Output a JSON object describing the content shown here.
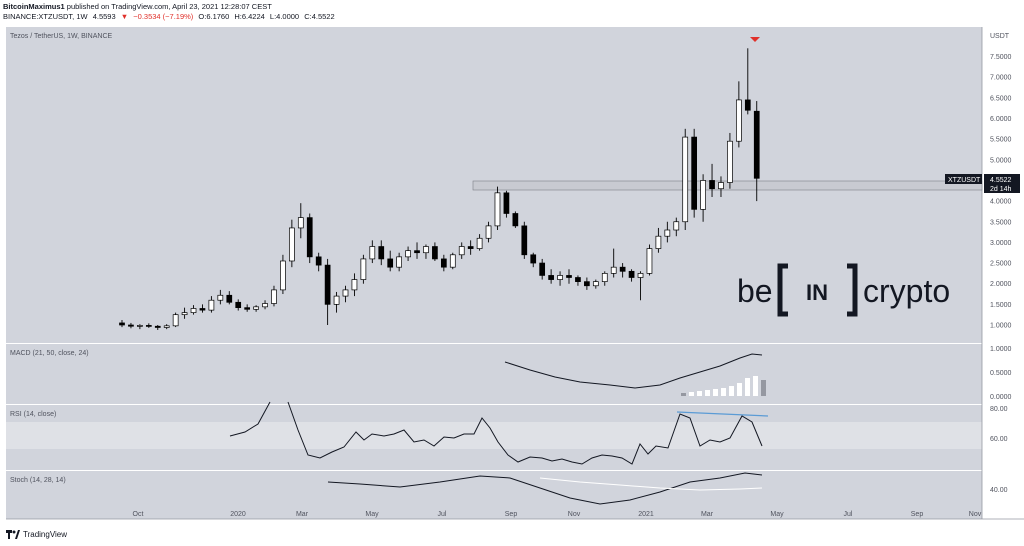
{
  "header": {
    "publisher": "BitcoinMaximus1",
    "published_text": "published on TradingView.com, April 23, 2021 12:28:07 CEST",
    "symbol": "BINANCE:XTZUSDT, 1W",
    "last": "4.5593",
    "change": "−0.3534 (−7.19%)",
    "open": "O:6.1760",
    "high": "H:6.4224",
    "low": "L:4.0000",
    "close": "C:4.5522"
  },
  "pane_title": "Tezos / TetherUS, 1W, BINANCE",
  "price_axis": {
    "unit": "USDT",
    "ticks": [
      "7.5000",
      "7.0000",
      "6.5000",
      "6.0000",
      "5.5000",
      "5.0000",
      "4.0000",
      "3.5000",
      "3.0000",
      "2.5000",
      "2.0000",
      "1.5000",
      "1.0000"
    ]
  },
  "price_tag": {
    "symbol": "XTZUSDT",
    "value": "4.5522",
    "countdown": "2d 14h"
  },
  "macd": {
    "title": "MACD (21, 50, close, 24)",
    "ticks": [
      "1.0000",
      "0.5000",
      "0.0000"
    ]
  },
  "rsi": {
    "title": "RSI (14, close)",
    "ticks": [
      "80.00",
      "60.00"
    ]
  },
  "stoch": {
    "title": "Stoch (14, 28, 14)",
    "ticks": [
      "40.00"
    ]
  },
  "time_axis": [
    "Oct",
    "2020",
    "Mar",
    "May",
    "Jul",
    "Sep",
    "Nov",
    "2021",
    "Mar",
    "May",
    "Jul",
    "Sep",
    "Nov"
  ],
  "watermark": {
    "left": "be",
    "middle": "IN",
    "right": "crypto"
  },
  "footer": "TradingView",
  "colors": {
    "pane_bg": "#d1d4dc",
    "up": "#ffffff",
    "down": "#000000",
    "signal": "#ffffff",
    "divergence": "#5b9bd5",
    "arrow": "#e0302a"
  },
  "chart_data": {
    "type": "candlestick",
    "title": "Tezos / TetherUS, 1W, BINANCE",
    "interval": "1W",
    "ylim": [
      0.8,
      7.9
    ],
    "resistance_zone": [
      4.3,
      4.55
    ],
    "candles": [
      [
        1.05,
        1.12,
        0.95,
        1.0
      ],
      [
        1.0,
        1.05,
        0.92,
        0.97
      ],
      [
        0.97,
        1.02,
        0.9,
        0.99
      ],
      [
        0.99,
        1.04,
        0.93,
        0.97
      ],
      [
        0.97,
        1.0,
        0.88,
        0.94
      ],
      [
        0.94,
        1.02,
        0.9,
        0.98
      ],
      [
        0.98,
        1.3,
        0.95,
        1.25
      ],
      [
        1.25,
        1.42,
        1.15,
        1.3
      ],
      [
        1.3,
        1.48,
        1.25,
        1.4
      ],
      [
        1.4,
        1.5,
        1.3,
        1.36
      ],
      [
        1.36,
        1.7,
        1.3,
        1.6
      ],
      [
        1.6,
        1.85,
        1.5,
        1.72
      ],
      [
        1.72,
        1.82,
        1.5,
        1.55
      ],
      [
        1.55,
        1.62,
        1.35,
        1.42
      ],
      [
        1.42,
        1.5,
        1.32,
        1.38
      ],
      [
        1.38,
        1.48,
        1.32,
        1.44
      ],
      [
        1.44,
        1.6,
        1.38,
        1.52
      ],
      [
        1.52,
        1.95,
        1.45,
        1.85
      ],
      [
        1.85,
        2.7,
        1.75,
        2.55
      ],
      [
        2.55,
        3.55,
        2.4,
        3.35
      ],
      [
        3.35,
        3.95,
        3.1,
        3.6
      ],
      [
        3.6,
        3.7,
        2.5,
        2.65
      ],
      [
        2.65,
        2.75,
        2.3,
        2.45
      ],
      [
        2.45,
        2.6,
        1.0,
        1.5
      ],
      [
        1.5,
        1.8,
        1.3,
        1.7
      ],
      [
        1.7,
        1.95,
        1.55,
        1.85
      ],
      [
        1.85,
        2.25,
        1.7,
        2.1
      ],
      [
        2.1,
        2.7,
        2.0,
        2.6
      ],
      [
        2.6,
        3.05,
        2.5,
        2.9
      ],
      [
        2.9,
        3.05,
        2.45,
        2.6
      ],
      [
        2.6,
        2.8,
        2.3,
        2.4
      ],
      [
        2.4,
        2.75,
        2.3,
        2.65
      ],
      [
        2.65,
        2.9,
        2.55,
        2.8
      ],
      [
        2.8,
        3.0,
        2.6,
        2.75
      ],
      [
        2.75,
        2.95,
        2.6,
        2.9
      ],
      [
        2.9,
        3.0,
        2.55,
        2.6
      ],
      [
        2.6,
        2.7,
        2.3,
        2.4
      ],
      [
        2.4,
        2.75,
        2.35,
        2.7
      ],
      [
        2.7,
        3.0,
        2.6,
        2.9
      ],
      [
        2.9,
        3.05,
        2.7,
        2.85
      ],
      [
        2.85,
        3.2,
        2.8,
        3.1
      ],
      [
        3.1,
        3.5,
        3.0,
        3.4
      ],
      [
        3.4,
        4.35,
        3.3,
        4.2
      ],
      [
        4.2,
        4.25,
        3.6,
        3.7
      ],
      [
        3.7,
        3.75,
        3.35,
        3.4
      ],
      [
        3.4,
        3.5,
        2.6,
        2.7
      ],
      [
        2.7,
        2.75,
        2.4,
        2.5
      ],
      [
        2.5,
        2.6,
        2.1,
        2.2
      ],
      [
        2.2,
        2.35,
        2.0,
        2.1
      ],
      [
        2.1,
        2.3,
        1.95,
        2.2
      ],
      [
        2.2,
        2.35,
        2.0,
        2.15
      ],
      [
        2.15,
        2.2,
        1.95,
        2.05
      ],
      [
        2.05,
        2.15,
        1.85,
        1.95
      ],
      [
        1.95,
        2.1,
        1.88,
        2.05
      ],
      [
        2.05,
        2.3,
        1.95,
        2.25
      ],
      [
        2.25,
        2.85,
        2.15,
        2.4
      ],
      [
        2.4,
        2.5,
        2.15,
        2.3
      ],
      [
        2.3,
        2.35,
        2.05,
        2.15
      ],
      [
        2.15,
        2.3,
        1.6,
        2.25
      ],
      [
        2.25,
        2.95,
        2.2,
        2.85
      ],
      [
        2.85,
        3.35,
        2.75,
        3.15
      ],
      [
        3.15,
        3.5,
        3.0,
        3.3
      ],
      [
        3.3,
        3.6,
        3.15,
        3.5
      ],
      [
        3.5,
        5.75,
        3.3,
        5.55
      ],
      [
        5.55,
        5.75,
        3.6,
        3.8
      ],
      [
        3.8,
        4.65,
        3.5,
        4.5
      ],
      [
        4.5,
        4.9,
        4.1,
        4.3
      ],
      [
        4.3,
        4.6,
        4.1,
        4.45
      ],
      [
        4.45,
        5.65,
        4.3,
        5.45
      ],
      [
        5.45,
        6.9,
        5.3,
        6.45
      ],
      [
        6.45,
        7.7,
        6.1,
        6.2
      ],
      [
        6.176,
        6.4224,
        4.0,
        4.5522
      ]
    ]
  }
}
